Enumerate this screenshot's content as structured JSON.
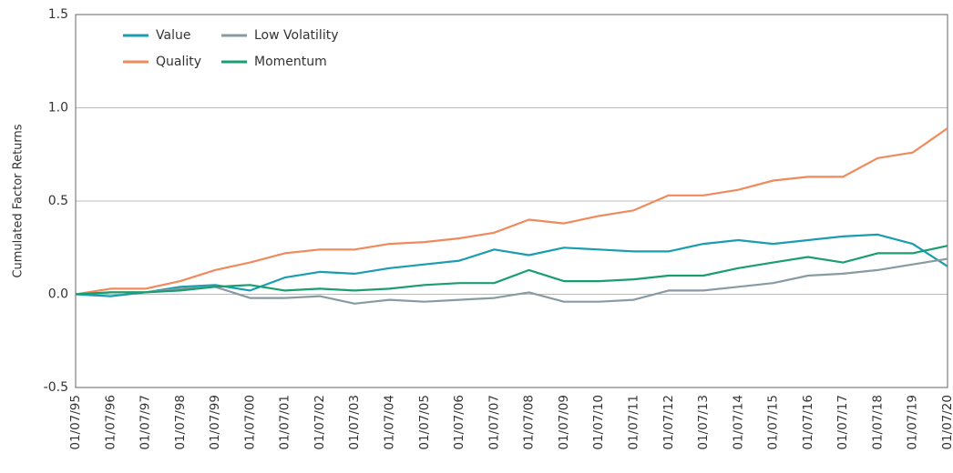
{
  "chart_data": {
    "type": "line",
    "y_label": "Cumulated Factor Returns",
    "categories": [
      "01/07/95",
      "01/07/96",
      "01/07/97",
      "01/07/98",
      "01/07/99",
      "01/07/00",
      "01/07/01",
      "01/07/02",
      "01/07/03",
      "01/07/04",
      "01/07/05",
      "01/07/06",
      "01/07/07",
      "01/07/08",
      "01/07/09",
      "01/07/10",
      "01/07/11",
      "01/07/12",
      "01/07/13",
      "01/07/14",
      "01/07/15",
      "01/07/16",
      "01/07/17",
      "01/07/18",
      "01/07/19",
      "01/07/20"
    ],
    "series": [
      {
        "name": "Value",
        "color": "#1a9db0",
        "values": [
          0,
          -0.01,
          0.01,
          0.04,
          0.05,
          0.02,
          0.09,
          0.12,
          0.11,
          0.14,
          0.16,
          0.18,
          0.24,
          0.21,
          0.25,
          0.24,
          0.23,
          0.23,
          0.27,
          0.29,
          0.27,
          0.29,
          0.31,
          0.32,
          0.27,
          0.15
        ]
      },
      {
        "name": "Quality",
        "color": "#f08a5d",
        "values": [
          0,
          0.03,
          0.03,
          0.07,
          0.13,
          0.17,
          0.22,
          0.24,
          0.24,
          0.27,
          0.28,
          0.3,
          0.33,
          0.4,
          0.38,
          0.42,
          0.45,
          0.53,
          0.53,
          0.56,
          0.61,
          0.63,
          0.63,
          0.73,
          0.76,
          0.89
        ]
      },
      {
        "name": "Low Volatility",
        "color": "#8a9aa3",
        "values": [
          0,
          0.01,
          0.01,
          0.03,
          0.04,
          -0.02,
          -0.02,
          -0.01,
          -0.05,
          -0.03,
          -0.04,
          -0.03,
          -0.02,
          0.01,
          -0.04,
          -0.04,
          -0.03,
          0.02,
          0.02,
          0.04,
          0.06,
          0.1,
          0.11,
          0.13,
          0.16,
          0.19
        ]
      },
      {
        "name": "Momentum",
        "color": "#1a9e6e",
        "values": [
          0,
          0.01,
          0.01,
          0.02,
          0.04,
          0.05,
          0.02,
          0.03,
          0.02,
          0.03,
          0.05,
          0.06,
          0.06,
          0.13,
          0.07,
          0.07,
          0.08,
          0.1,
          0.1,
          0.14,
          0.17,
          0.2,
          0.17,
          0.22,
          0.22,
          0.26
        ]
      }
    ],
    "ylim": [
      -0.5,
      1.5
    ],
    "yticks": [
      -0.5,
      {
        "value": 0,
        "label": "0.0"
      },
      0.5,
      {
        "value": 1,
        "label": "1.0"
      },
      1.5
    ],
    "grid": true
  }
}
